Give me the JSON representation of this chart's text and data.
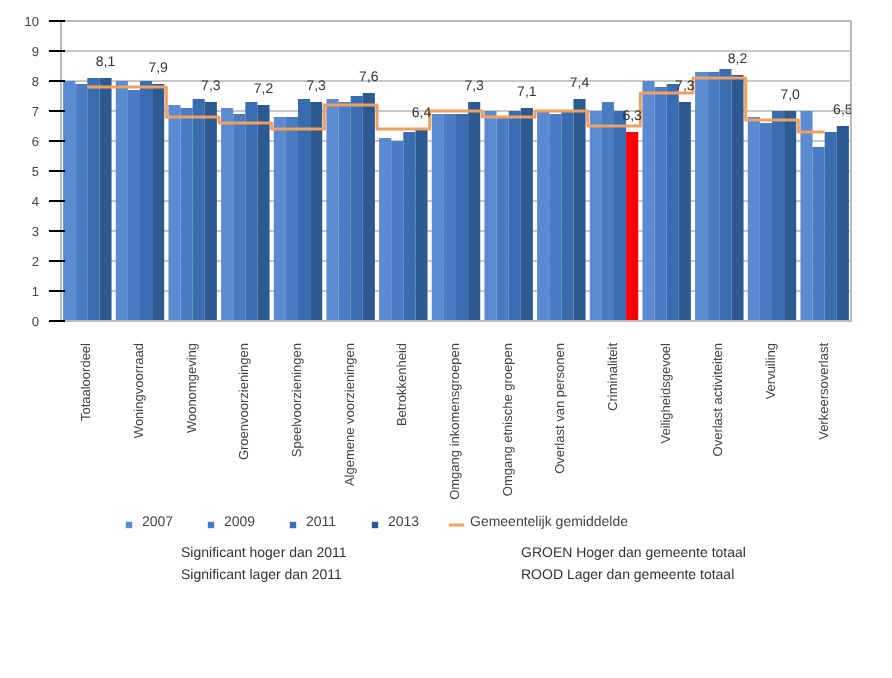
{
  "chart_data": {
    "type": "bar",
    "categories": [
      "Totaaloordeel",
      "Woningvoorraad",
      "Woonomgeving",
      "Groenvoorzieningen",
      "Speelvoorzieningen",
      "Algemene voorzieningen",
      "Betrokkenheid",
      "Omgang inkomensgroepen",
      "Omgang etnische groepen",
      "Overlast van personen",
      "Criminaliteit",
      "Veiligheidsgevoel",
      "Overlast activiteiten",
      "Vervuiling",
      "Verkeersoverlast"
    ],
    "series": [
      {
        "name": "2007",
        "color": "#5b8ad0",
        "values": [
          8.0,
          8.0,
          7.2,
          7.1,
          6.8,
          7.4,
          6.1,
          6.9,
          7.0,
          7.0,
          7.0,
          8.0,
          8.3,
          6.8,
          7.0
        ]
      },
      {
        "name": "2009",
        "color": "#4a7cc4",
        "values": [
          7.9,
          7.7,
          7.1,
          6.9,
          6.8,
          7.3,
          6.0,
          6.9,
          6.8,
          6.9,
          7.3,
          7.8,
          8.3,
          6.6,
          5.8
        ]
      },
      {
        "name": "2011",
        "color": "#3a6cb0",
        "values": [
          8.1,
          8.0,
          7.4,
          7.3,
          7.4,
          7.5,
          6.3,
          6.9,
          7.0,
          7.0,
          7.0,
          7.9,
          8.4,
          7.0,
          6.3
        ]
      },
      {
        "name": "2013",
        "color": "#2e5a92",
        "colors": [
          "#2e5a92",
          "#2e5a92",
          "#2e5a92",
          "#2e5a92",
          "#2e5a92",
          "#2e5a92",
          "#2e5a92",
          "#2e5a92",
          "#2e5a92",
          "#2e5a92",
          "#ff0000",
          "#2e5a92",
          "#2e5a92",
          "#2e5a92",
          "#2e5a92"
        ],
        "values": [
          8.1,
          7.9,
          7.3,
          7.2,
          7.3,
          7.6,
          6.4,
          7.3,
          7.1,
          7.4,
          6.3,
          7.3,
          8.2,
          7.0,
          6.5
        ],
        "value_labels": [
          "8,1",
          "7,9",
          "7,3",
          "7,2",
          "7,3",
          "7,6",
          "6,4",
          "7,3",
          "7,1",
          "7,4",
          "6,3",
          "7,3",
          "8,2",
          "7,0",
          "6,5"
        ]
      },
      {
        "name": "Gemeentelijk gemiddelde",
        "type": "step",
        "color": "#f0a060",
        "values": [
          7.8,
          7.8,
          6.8,
          6.6,
          6.4,
          7.2,
          6.4,
          7.0,
          6.8,
          7.0,
          6.5,
          7.6,
          8.1,
          6.7,
          6.3
        ]
      }
    ],
    "ylim": [
      0,
      10
    ],
    "yticks": [
      0,
      1,
      2,
      3,
      4,
      5,
      6,
      7,
      8,
      9,
      10
    ],
    "grid": "y",
    "legend": "bottom",
    "annotations": [
      "Significant hoger dan 2011",
      "Significant lager dan 2011",
      "GROEN Hoger dan gemeente totaal",
      "ROOD Lager dan gemeente totaal"
    ]
  }
}
